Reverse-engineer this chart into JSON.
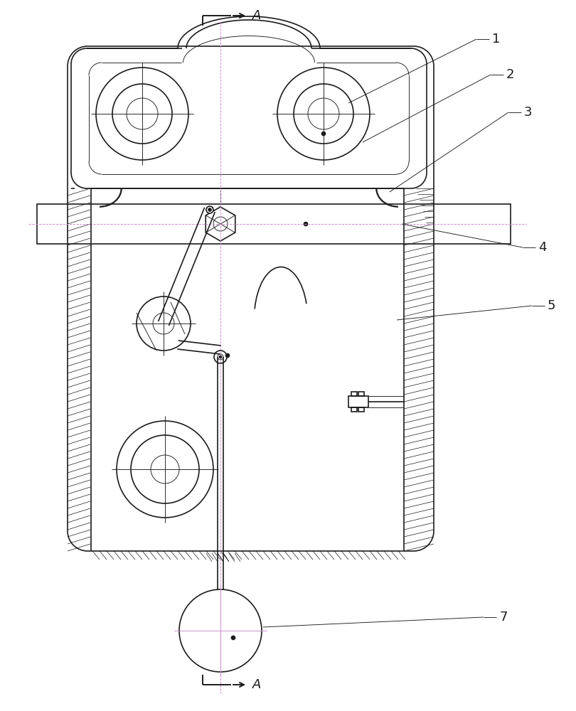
{
  "bg": "#ffffff",
  "lc": "#1c1c1c",
  "pink": "#cc88cc",
  "lw": 1.2,
  "tlw": 0.65,
  "hlw": 0.5
}
